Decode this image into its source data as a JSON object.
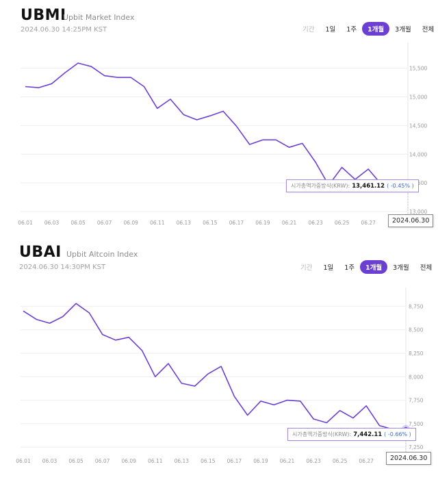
{
  "chart_data": [
    {
      "type": "line",
      "title": "UBMI",
      "subtitle": "Upbit Market Index",
      "timestamp": "2024.06.30 14:25PM KST",
      "tabs": [
        "기간",
        "1일",
        "1주",
        "1개월",
        "3개월",
        "전체"
      ],
      "active_tab": "1개월",
      "x": [
        "06.01",
        "06.02",
        "06.03",
        "06.04",
        "06.05",
        "06.06",
        "06.07",
        "06.08",
        "06.09",
        "06.10",
        "06.11",
        "06.12",
        "06.13",
        "06.14",
        "06.15",
        "06.16",
        "06.17",
        "06.18",
        "06.19",
        "06.20",
        "06.21",
        "06.22",
        "06.23",
        "06.24",
        "06.25",
        "06.26",
        "06.27",
        "06.28",
        "06.29",
        "06.30"
      ],
      "x_tick_labels": [
        "06.01",
        "06.03",
        "06.05",
        "06.07",
        "06.09",
        "06.11",
        "06.13",
        "06.15",
        "06.17",
        "06.19",
        "06.21",
        "06.23",
        "06.25",
        "06.27"
      ],
      "values": [
        15180,
        15160,
        15230,
        15420,
        15590,
        15530,
        15370,
        15340,
        15340,
        15180,
        14800,
        14960,
        14690,
        14600,
        14670,
        14750,
        14490,
        14170,
        14250,
        14250,
        14120,
        14190,
        13860,
        13460,
        13770,
        13560,
        13740,
        13470,
        13440,
        13461.12
      ],
      "ylim": [
        13000,
        15950
      ],
      "y_ticks": [
        "13,000",
        "13,500",
        "14,000",
        "14,500",
        "15,000",
        "15,500"
      ],
      "y_tick_values": [
        13000,
        13500,
        14000,
        14500,
        15000,
        15500
      ],
      "color": "#6b3fd1",
      "tooltip": {
        "label": "시가총액가중방식(KRW):",
        "value": "13,461.12",
        "change": "( -0.45% )"
      },
      "date_label": "2024.06.30"
    },
    {
      "type": "line",
      "title": "UBAI",
      "subtitle": "Upbit Altcoin Index",
      "timestamp": "2024.06.30 14:30PM KST",
      "tabs": [
        "기간",
        "1일",
        "1주",
        "1개월",
        "3개월",
        "전체"
      ],
      "active_tab": "1개월",
      "x": [
        "06.01",
        "06.02",
        "06.03",
        "06.04",
        "06.05",
        "06.06",
        "06.07",
        "06.08",
        "06.09",
        "06.10",
        "06.11",
        "06.12",
        "06.13",
        "06.14",
        "06.15",
        "06.16",
        "06.17",
        "06.18",
        "06.19",
        "06.20",
        "06.21",
        "06.22",
        "06.23",
        "06.24",
        "06.25",
        "06.26",
        "06.27",
        "06.28",
        "06.29",
        "06.30"
      ],
      "x_tick_labels": [
        "06.01",
        "06.03",
        "06.05",
        "06.07",
        "06.09",
        "06.11",
        "06.13",
        "06.15",
        "06.17",
        "06.19",
        "06.21",
        "06.23",
        "06.25",
        "06.27"
      ],
      "values": [
        8700,
        8610,
        8570,
        8640,
        8780,
        8680,
        8450,
        8390,
        8420,
        8280,
        8000,
        8140,
        7930,
        7900,
        8030,
        8110,
        7790,
        7590,
        7740,
        7700,
        7750,
        7740,
        7550,
        7510,
        7640,
        7560,
        7690,
        7480,
        7440,
        7442.11
      ],
      "ylim": [
        7200,
        8950
      ],
      "y_ticks": [
        "7,250",
        "7,500",
        "7,750",
        "8,000",
        "8,250",
        "8,500",
        "8,750"
      ],
      "y_tick_values": [
        7250,
        7500,
        7750,
        8000,
        8250,
        8500,
        8750
      ],
      "color": "#6b3fd1",
      "tooltip": {
        "label": "시가총액가중방식(KRW):",
        "value": "7,442.11",
        "change": "( -0.66% )"
      },
      "date_label": "2024.06.30"
    }
  ]
}
